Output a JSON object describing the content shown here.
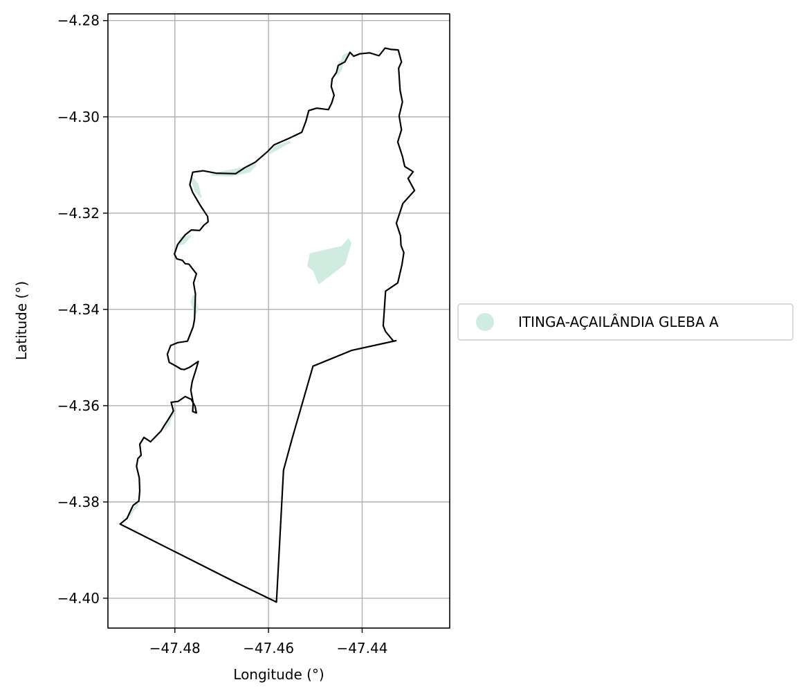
{
  "chart_data": {
    "type": "map",
    "xlabel": "Longitude (°)",
    "ylabel": "Latitude (°)",
    "xlim": [
      -47.4943,
      -47.4213
    ],
    "ylim": [
      -4.4062,
      -4.2786
    ],
    "xticks": [
      {
        "value": -47.48,
        "label": "−47.48"
      },
      {
        "value": -47.46,
        "label": "−47.46"
      },
      {
        "value": -47.44,
        "label": "−47.44"
      }
    ],
    "yticks": [
      {
        "value": -4.28,
        "label": "−4.28"
      },
      {
        "value": -4.3,
        "label": "−4.30"
      },
      {
        "value": -4.32,
        "label": "−4.32"
      },
      {
        "value": -4.34,
        "label": "−4.34"
      },
      {
        "value": -4.36,
        "label": "−4.36"
      },
      {
        "value": -4.38,
        "label": "−4.38"
      },
      {
        "value": -4.4,
        "label": "−4.40"
      }
    ],
    "grid": true,
    "legend": {
      "placement": "right",
      "entries": [
        {
          "label": "ITINGA-AÇAILÂNDIA GLEBA A",
          "color": "#d0ece0"
        }
      ]
    },
    "colors": {
      "boundary": "#000000",
      "fill": "#d0ece0",
      "grid": "#b0b0b0"
    },
    "boundary": [
      [
        -47.4426,
        -4.2866
      ],
      [
        -47.4418,
        -4.2874
      ],
      [
        -47.4405,
        -4.2869
      ],
      [
        -47.4384,
        -4.2867
      ],
      [
        -47.4364,
        -4.2873
      ],
      [
        -47.4351,
        -4.2857
      ],
      [
        -47.4338,
        -4.286
      ],
      [
        -47.4323,
        -4.2861
      ],
      [
        -47.4316,
        -4.2886
      ],
      [
        -47.4322,
        -4.2899
      ],
      [
        -47.4319,
        -4.2945
      ],
      [
        -47.4314,
        -4.2969
      ],
      [
        -47.4321,
        -4.2998
      ],
      [
        -47.4316,
        -4.3027
      ],
      [
        -47.4324,
        -4.3052
      ],
      [
        -47.4314,
        -4.3082
      ],
      [
        -47.4309,
        -4.3103
      ],
      [
        -47.4291,
        -4.3114
      ],
      [
        -47.4302,
        -4.3128
      ],
      [
        -47.4288,
        -4.3153
      ],
      [
        -47.4313,
        -4.318
      ],
      [
        -47.4327,
        -4.3221
      ],
      [
        -47.4318,
        -4.3247
      ],
      [
        -47.4317,
        -4.3267
      ],
      [
        -47.4311,
        -4.3282
      ],
      [
        -47.4315,
        -4.3307
      ],
      [
        -47.4324,
        -4.3345
      ],
      [
        -47.435,
        -4.3362
      ],
      [
        -47.4353,
        -4.3405
      ],
      [
        -47.4355,
        -4.3434
      ],
      [
        -47.435,
        -4.3446
      ],
      [
        -47.4333,
        -4.3466
      ],
      [
        -47.4328,
        -4.3465
      ],
      [
        -47.4422,
        -4.3485
      ],
      [
        -47.4505,
        -4.3518
      ],
      [
        -47.455,
        -4.367
      ],
      [
        -47.4568,
        -4.3734
      ],
      [
        -47.4583,
        -4.4008
      ],
      [
        -47.4674,
        -4.3965
      ],
      [
        -47.4917,
        -4.3846
      ],
      [
        -47.4902,
        -4.3834
      ],
      [
        -47.4896,
        -4.3821
      ],
      [
        -47.4889,
        -4.3807
      ],
      [
        -47.4877,
        -4.3798
      ],
      [
        -47.4875,
        -4.3777
      ],
      [
        -47.4876,
        -4.375
      ],
      [
        -47.4882,
        -4.3726
      ],
      [
        -47.4879,
        -4.371
      ],
      [
        -47.4872,
        -4.3703
      ],
      [
        -47.4875,
        -4.368
      ],
      [
        -47.4866,
        -4.3666
      ],
      [
        -47.4852,
        -4.3675
      ],
      [
        -47.483,
        -4.3653
      ],
      [
        -47.4823,
        -4.3642
      ],
      [
        -47.4815,
        -4.363
      ],
      [
        -47.4803,
        -4.3611
      ],
      [
        -47.4808,
        -4.3593
      ],
      [
        -47.4793,
        -4.3591
      ],
      [
        -47.4778,
        -4.3581
      ],
      [
        -47.4765,
        -4.3587
      ],
      [
        -47.4757,
        -4.3601
      ],
      [
        -47.4754,
        -4.3615
      ],
      [
        -47.4762,
        -4.3612
      ],
      [
        -47.4761,
        -4.3594
      ],
      [
        -47.4766,
        -4.3568
      ],
      [
        -47.4763,
        -4.355
      ],
      [
        -47.4754,
        -4.3522
      ],
      [
        -47.475,
        -4.3508
      ],
      [
        -47.4768,
        -4.352
      ],
      [
        -47.478,
        -4.3525
      ],
      [
        -47.4787,
        -4.3524
      ],
      [
        -47.4799,
        -4.3517
      ],
      [
        -47.4812,
        -4.351
      ],
      [
        -47.4816,
        -4.3493
      ],
      [
        -47.4809,
        -4.3475
      ],
      [
        -47.4794,
        -4.3469
      ],
      [
        -47.4773,
        -4.3466
      ],
      [
        -47.4761,
        -4.3436
      ],
      [
        -47.4758,
        -4.342
      ],
      [
        -47.4756,
        -4.3368
      ],
      [
        -47.476,
        -4.3345
      ],
      [
        -47.4754,
        -4.3326
      ],
      [
        -47.477,
        -4.3306
      ],
      [
        -47.4778,
        -4.3305
      ],
      [
        -47.4784,
        -4.3298
      ],
      [
        -47.4796,
        -4.3295
      ],
      [
        -47.4801,
        -4.3285
      ],
      [
        -47.4794,
        -4.3265
      ],
      [
        -47.4778,
        -4.3245
      ],
      [
        -47.4765,
        -4.3235
      ],
      [
        -47.4747,
        -4.3236
      ],
      [
        -47.4738,
        -4.3225
      ],
      [
        -47.4729,
        -4.3218
      ],
      [
        -47.473,
        -4.3207
      ],
      [
        -47.4745,
        -4.3185
      ],
      [
        -47.4762,
        -4.3157
      ],
      [
        -47.4768,
        -4.3141
      ],
      [
        -47.4762,
        -4.3115
      ],
      [
        -47.474,
        -4.3112
      ],
      [
        -47.4712,
        -4.3117
      ],
      [
        -47.467,
        -4.3118
      ],
      [
        -47.465,
        -4.3105
      ],
      [
        -47.4628,
        -4.3094
      ],
      [
        -47.4602,
        -4.3072
      ],
      [
        -47.4588,
        -4.3058
      ],
      [
        -47.4557,
        -4.3045
      ],
      [
        -47.4529,
        -4.3032
      ],
      [
        -47.452,
        -4.3009
      ],
      [
        -47.4514,
        -4.2987
      ],
      [
        -47.4497,
        -4.2982
      ],
      [
        -47.4472,
        -4.2985
      ],
      [
        -47.4465,
        -4.2971
      ],
      [
        -47.446,
        -4.2955
      ],
      [
        -47.4466,
        -4.2937
      ],
      [
        -47.4464,
        -4.2921
      ],
      [
        -47.4455,
        -4.2908
      ],
      [
        -47.4451,
        -4.2893
      ],
      [
        -47.4437,
        -4.2886
      ],
      [
        -47.4426,
        -4.2866
      ]
    ],
    "filled_areas": [
      [
        [
          -47.451,
          -4.3285
        ],
        [
          -47.4442,
          -4.327
        ],
        [
          -47.443,
          -4.3255
        ],
        [
          -47.4425,
          -4.3262
        ],
        [
          -47.4438,
          -4.3305
        ],
        [
          -47.4492,
          -4.3345
        ],
        [
          -47.4503,
          -4.3318
        ],
        [
          -47.4515,
          -4.331
        ]
      ],
      [
        [
          -47.4447,
          -4.2886
        ],
        [
          -47.4437,
          -4.2881
        ],
        [
          -47.4428,
          -4.2868
        ],
        [
          -47.444,
          -4.2873
        ],
        [
          -47.4445,
          -4.29
        ],
        [
          -47.4452,
          -4.2912
        ]
      ],
      [
        [
          -47.472,
          -4.312
        ],
        [
          -47.468,
          -4.3122
        ],
        [
          -47.464,
          -4.3113
        ],
        [
          -47.4628,
          -4.31
        ],
        [
          -47.466,
          -4.3108
        ],
        [
          -47.47,
          -4.3115
        ]
      ],
      [
        [
          -47.4555,
          -4.3052
        ],
        [
          -47.4585,
          -4.3062
        ],
        [
          -47.4597,
          -4.3075
        ],
        [
          -47.4575,
          -4.3063
        ]
      ],
      [
        [
          -47.4764,
          -4.3126
        ],
        [
          -47.4757,
          -4.3152
        ],
        [
          -47.4745,
          -4.3166
        ],
        [
          -47.4752,
          -4.314
        ]
      ],
      [
        [
          -47.476,
          -4.3372
        ],
        [
          -47.4752,
          -4.3398
        ],
        [
          -47.4756,
          -4.3409
        ],
        [
          -47.4764,
          -4.3384
        ]
      ],
      [
        [
          -47.4792,
          -4.3266
        ],
        [
          -47.478,
          -4.3262
        ],
        [
          -47.4768,
          -4.3248
        ],
        [
          -47.4786,
          -4.3251
        ]
      ],
      [
        [
          -47.4802,
          -4.3613
        ],
        [
          -47.4813,
          -4.3635
        ],
        [
          -47.482,
          -4.3648
        ],
        [
          -47.4809,
          -4.3624
        ]
      ],
      [
        [
          -47.4895,
          -4.3826
        ],
        [
          -47.488,
          -4.3805
        ],
        [
          -47.4888,
          -4.3816
        ]
      ]
    ]
  }
}
